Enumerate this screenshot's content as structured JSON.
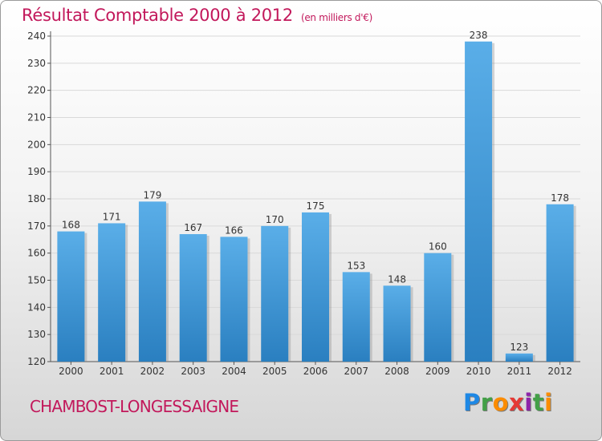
{
  "header": {
    "title": "Résultat Comptable 2000 à 2012",
    "subtitle": "(en milliers d'€)"
  },
  "footer": {
    "commune": "CHAMBOST-LONGESSAIGNE",
    "logo": [
      "P",
      "r",
      "o",
      "x",
      "i",
      "t",
      "i"
    ]
  },
  "colors": {
    "title": "#c2185b",
    "bar_top": "#5aaee8",
    "bar_bottom": "#2a7fc0",
    "grid": "#d9d9d9"
  },
  "chart_data": {
    "type": "bar",
    "title": "Résultat Comptable 2000 à 2012",
    "subtitle": "(en milliers d'€)",
    "categories": [
      "2000",
      "2001",
      "2002",
      "2003",
      "2004",
      "2005",
      "2006",
      "2007",
      "2008",
      "2009",
      "2010",
      "2011",
      "2012"
    ],
    "values": [
      168,
      171,
      179,
      167,
      166,
      170,
      175,
      153,
      148,
      160,
      238,
      123,
      178
    ],
    "ylim": [
      120,
      240
    ],
    "yticks": [
      120,
      130,
      140,
      150,
      160,
      170,
      180,
      190,
      200,
      210,
      220,
      230,
      240
    ],
    "grid": true,
    "legend": "none"
  }
}
